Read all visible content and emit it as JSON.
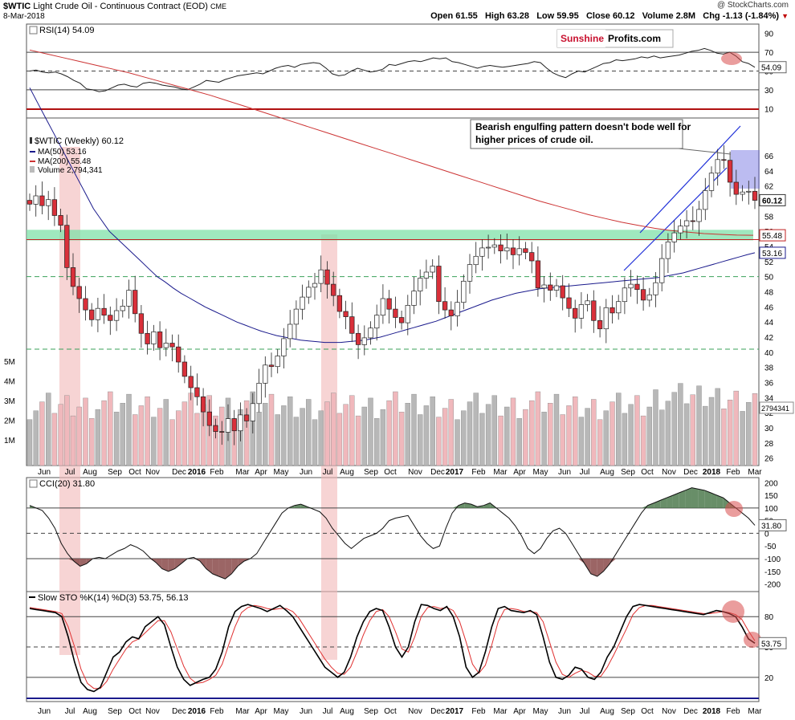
{
  "header": {
    "symbol": "$WTIC",
    "name": "Light Crude Oil - Continuous Contract (EOD)",
    "exchange": "CME",
    "date": "8-Mar-2018",
    "open": "Open 61.55",
    "high": "High 63.28",
    "low": "Low 59.95",
    "close": "Close 60.12",
    "volume": "Volume 2.8M",
    "chg": "Chg -1.13 (-1.84%)",
    "stamp": "@ StockCharts.com"
  },
  "logo": {
    "part1": "Sunshine",
    "part2": "Profits.com"
  },
  "annotation": "Bearish engulfing pattern doesn't bode well for higher prices of crude oil.",
  "colors": {
    "up": "#ffffff",
    "down": "#d9303a",
    "ma50": "#1a1a8c",
    "ma200": "#cc3333",
    "zone": "#7fe0a8",
    "channel": "#1e2fd8",
    "highlight": "#f2b8b8",
    "dashed_green": "#3aa05a",
    "rsi_line": "#202020",
    "overbought": "#4e7a4e",
    "oversold": "#8a4a4a",
    "sto_k": "#000000",
    "sto_d": "#e03030"
  },
  "chart_data": [
    {
      "panel": "RSI",
      "type": "line",
      "title": "RSI(14) 54.09",
      "last_value": "54.09",
      "ylim": [
        0,
        100
      ],
      "y_ticks": [
        "90",
        "70",
        "50",
        "30",
        "10"
      ],
      "levels": [
        70,
        30
      ],
      "values": [
        50,
        51,
        49,
        48,
        49,
        47,
        44,
        40,
        37,
        31,
        30,
        28,
        29,
        32,
        35,
        36,
        34,
        33,
        37,
        38,
        37,
        35,
        34,
        33,
        31,
        30,
        33,
        36,
        40,
        39,
        38,
        41,
        43,
        45,
        46,
        47,
        48,
        47,
        50,
        53,
        55,
        56,
        54,
        57,
        58,
        59,
        58,
        53,
        47,
        45,
        46,
        50,
        53,
        51,
        49,
        50,
        52,
        57,
        56,
        58,
        60,
        61,
        60,
        62,
        64,
        63,
        64,
        60,
        59,
        57,
        55,
        53,
        55,
        56,
        55,
        54,
        55,
        56,
        57,
        58,
        60,
        59,
        53,
        48,
        45,
        43,
        47,
        50,
        49,
        52,
        55,
        58,
        59,
        62,
        61,
        62,
        63,
        65,
        64,
        66,
        64,
        65,
        66,
        67,
        69,
        71,
        72,
        74,
        72,
        69,
        68,
        70,
        66,
        60,
        58,
        54
      ]
    },
    {
      "panel": "Price",
      "type": "candlestick",
      "title": "$WTIC (Weekly) 60.12",
      "legend": [
        "MA(50) 53.16",
        "MA(200) 55.48",
        "Volume 2,794,341"
      ],
      "last_close": "60.12",
      "ma200_last": "55.48",
      "ma50_last": "53.16",
      "volume_last": "2794341",
      "ylim": [
        25,
        71
      ],
      "y_ticks": [
        "66",
        "64",
        "62",
        "60",
        "58",
        "56",
        "54",
        "52",
        "50",
        "48",
        "46",
        "44",
        "42",
        "40",
        "38",
        "36",
        "34",
        "32",
        "30",
        "28",
        "26"
      ],
      "volume_ticks": [
        "5M",
        "4M",
        "3M",
        "2M",
        "1M"
      ],
      "close": [
        59.6,
        60.7,
        59.4,
        60.2,
        58.1,
        56.8,
        51.2,
        48.7,
        47.1,
        45.6,
        44.3,
        45.8,
        44.9,
        44.2,
        45.5,
        46.1,
        48.2,
        45.1,
        42.5,
        41.1,
        42.7,
        40.6,
        41.2,
        40.7,
        38.7,
        36.8,
        35.3,
        34.1,
        32.1,
        30.3,
        29.5,
        29.4,
        31.2,
        29.6,
        31.7,
        30.9,
        33.2,
        35.9,
        38.3,
        38.1,
        39.5,
        41.8,
        43.7,
        45.7,
        47.3,
        48.6,
        49.1,
        50.9,
        49.0,
        47.5,
        45.4,
        44.7,
        42.5,
        41.0,
        41.9,
        43.2,
        44.9,
        47.1,
        45.7,
        44.6,
        43.9,
        46.2,
        48.1,
        49.8,
        50.6,
        51.4,
        46.7,
        45.6,
        44.8,
        46.6,
        49.4,
        51.6,
        52.7,
        53.8,
        53.9,
        54.2,
        53.4,
        53.8,
        52.9,
        53.7,
        53.2,
        52.1,
        48.5,
        48.9,
        48.2,
        48.8,
        47.2,
        45.8,
        44.5,
        46.3,
        46.8,
        44.2,
        43.1,
        45.9,
        45.2,
        46.7,
        48.5,
        49.0,
        48.3,
        46.9,
        47.6,
        49.2,
        52.4,
        54.6,
        55.8,
        56.7,
        57.4,
        57.3,
        58.9,
        61.4,
        63.7,
        65.5,
        65.4,
        62.5,
        60.9,
        61.2,
        61.3,
        60.1
      ],
      "ma50": [
        75,
        73,
        71,
        69,
        67,
        65,
        63,
        61,
        59,
        57.5,
        56,
        55,
        54,
        53,
        52,
        51,
        50,
        49.3,
        48.5,
        47.8,
        47.2,
        46.6,
        46,
        45.5,
        45,
        44.5,
        44,
        43.6,
        43.2,
        42.8,
        42.5,
        42.2,
        42,
        41.8,
        41.6,
        41.5,
        41.4,
        41.3,
        41.3,
        41.3,
        41.4,
        41.5,
        41.6,
        41.8,
        42,
        42.3,
        42.6,
        42.9,
        43.2,
        43.5,
        43.8,
        44.1,
        44.5,
        44.9,
        45.3,
        45.7,
        46.1,
        46.5,
        46.9,
        47.2,
        47.5,
        47.8,
        48,
        48.2,
        48.4,
        48.5,
        48.6,
        48.7,
        48.8,
        48.9,
        49,
        49.1,
        49.2,
        49.3,
        49.4,
        49.5,
        49.6,
        49.7,
        49.8,
        49.9,
        50.1,
        50.3,
        50.5,
        50.8,
        51.1,
        51.4,
        51.7,
        52,
        52.3,
        52.6,
        52.9,
        53.16
      ],
      "ma200": [
        80,
        79.5,
        79,
        78.5,
        78,
        77.5,
        77,
        76.4,
        75.8,
        75.2,
        74.6,
        74,
        73.3,
        72.6,
        71.9,
        71.2,
        70.5,
        69.8,
        69.1,
        68.4,
        67.7,
        67,
        66.3,
        65.6,
        64.9,
        64.2,
        63.5,
        62.8,
        62.1,
        61.4,
        60.7,
        60,
        59.4,
        58.8,
        58.2,
        57.7,
        57.2,
        56.8,
        56.4,
        56.1,
        55.9,
        55.7,
        55.6,
        55.5,
        55.48
      ]
    },
    {
      "panel": "CCI",
      "type": "area",
      "title": "CCI(20) 31.80",
      "last_value": "31.80",
      "ylim": [
        -230,
        220
      ],
      "y_ticks": [
        "200",
        "150",
        "100",
        "50",
        "0",
        "-50",
        "-100",
        "-150",
        "-200"
      ],
      "levels": [
        100,
        0,
        -100
      ],
      "values": [
        110,
        100,
        90,
        60,
        20,
        -40,
        -80,
        -110,
        -130,
        -120,
        -100,
        -95,
        -100,
        -85,
        -70,
        -60,
        -45,
        -55,
        -70,
        -95,
        -115,
        -140,
        -150,
        -140,
        -120,
        -100,
        -95,
        -110,
        -140,
        -160,
        -170,
        -180,
        -160,
        -130,
        -110,
        -100,
        -80,
        -40,
        0,
        40,
        80,
        100,
        110,
        115,
        105,
        95,
        85,
        60,
        20,
        -10,
        -40,
        -60,
        -40,
        -20,
        -10,
        0,
        20,
        50,
        60,
        65,
        70,
        30,
        -10,
        -40,
        -60,
        -50,
        20,
        80,
        110,
        120,
        115,
        105,
        110,
        120,
        100,
        80,
        60,
        30,
        -10,
        -60,
        -80,
        -60,
        -20,
        10,
        20,
        0,
        -40,
        -80,
        -120,
        -160,
        -170,
        -150,
        -120,
        -80,
        -40,
        0,
        40,
        80,
        110,
        120,
        130,
        140,
        150,
        160,
        170,
        180,
        175,
        170,
        160,
        150,
        140,
        120,
        100,
        80,
        60,
        31.8
      ]
    },
    {
      "panel": "Stochastic",
      "type": "line",
      "title": "Slow STO %K(14) %D(3) 53.75, 56.13",
      "k_last": "53.75",
      "d_last": "56.13",
      "ylim": [
        0,
        100
      ],
      "y_ticks": [
        "80",
        "50",
        "20"
      ],
      "levels": [
        80,
        50,
        20
      ],
      "series": [
        {
          "name": "%K(14)",
          "values": [
            88,
            87,
            86,
            85,
            84,
            80,
            60,
            35,
            15,
            8,
            6,
            10,
            25,
            40,
            45,
            55,
            60,
            58,
            70,
            75,
            80,
            72,
            50,
            30,
            18,
            12,
            15,
            18,
            20,
            28,
            45,
            70,
            85,
            90,
            92,
            90,
            88,
            85,
            88,
            91,
            86,
            80,
            70,
            60,
            50,
            40,
            30,
            25,
            20,
            25,
            40,
            60,
            75,
            85,
            88,
            86,
            70,
            50,
            40,
            50,
            75,
            92,
            91,
            88,
            86,
            90,
            80,
            60,
            30,
            20,
            25,
            45,
            70,
            88,
            90,
            86,
            85,
            84,
            86,
            82,
            60,
            35,
            20,
            18,
            22,
            30,
            28,
            20,
            18,
            25,
            40,
            50,
            65,
            80,
            90,
            92,
            91,
            90,
            89,
            88,
            87,
            86,
            85,
            84,
            83,
            82,
            84,
            86,
            85,
            83,
            80,
            70,
            58,
            53.75
          ]
        },
        {
          "name": "%D(3)",
          "values": [
            89,
            88,
            87,
            86,
            85,
            83,
            70,
            50,
            28,
            14,
            9,
            9,
            16,
            28,
            38,
            48,
            55,
            58,
            64,
            70,
            76,
            76,
            65,
            48,
            31,
            19,
            14,
            15,
            18,
            22,
            33,
            52,
            70,
            84,
            89,
            91,
            90,
            88,
            87,
            88,
            88,
            85,
            78,
            68,
            58,
            48,
            38,
            30,
            24,
            23,
            30,
            45,
            62,
            76,
            85,
            87,
            80,
            65,
            48,
            45,
            60,
            80,
            89,
            90,
            88,
            89,
            86,
            75,
            55,
            33,
            24,
            32,
            52,
            75,
            87,
            88,
            87,
            85,
            85,
            84,
            75,
            55,
            35,
            23,
            20,
            24,
            27,
            25,
            21,
            21,
            30,
            42,
            55,
            68,
            82,
            89,
            91,
            91,
            90,
            89,
            88,
            87,
            86,
            85,
            84,
            83,
            83,
            84,
            85,
            84,
            82,
            77,
            66,
            56.13
          ]
        }
      ]
    }
  ],
  "x_axis": [
    {
      "label": "Jun",
      "yr": false
    },
    {
      "label": "Jul",
      "yr": false
    },
    {
      "label": "Aug",
      "yr": false
    },
    {
      "label": "Sep",
      "yr": false
    },
    {
      "label": "Oct",
      "yr": false
    },
    {
      "label": "Nov",
      "yr": false
    },
    {
      "label": "Dec",
      "yr": false
    },
    {
      "label": "2016",
      "yr": true
    },
    {
      "label": "Feb",
      "yr": false
    },
    {
      "label": "Mar",
      "yr": false
    },
    {
      "label": "Apr",
      "yr": false
    },
    {
      "label": "May",
      "yr": false
    },
    {
      "label": "Jun",
      "yr": false
    },
    {
      "label": "Jul",
      "yr": false
    },
    {
      "label": "Aug",
      "yr": false
    },
    {
      "label": "Sep",
      "yr": false
    },
    {
      "label": "Oct",
      "yr": false
    },
    {
      "label": "Nov",
      "yr": false
    },
    {
      "label": "Dec",
      "yr": false
    },
    {
      "label": "2017",
      "yr": true
    },
    {
      "label": "Feb",
      "yr": false
    },
    {
      "label": "Mar",
      "yr": false
    },
    {
      "label": "Apr",
      "yr": false
    },
    {
      "label": "May",
      "yr": false
    },
    {
      "label": "Jun",
      "yr": false
    },
    {
      "label": "Jul",
      "yr": false
    },
    {
      "label": "Aug",
      "yr": false
    },
    {
      "label": "Sep",
      "yr": false
    },
    {
      "label": "Oct",
      "yr": false
    },
    {
      "label": "Nov",
      "yr": false
    },
    {
      "label": "Dec",
      "yr": false
    },
    {
      "label": "2018",
      "yr": true
    },
    {
      "label": "Feb",
      "yr": false
    },
    {
      "label": "Mar",
      "yr": false
    }
  ]
}
